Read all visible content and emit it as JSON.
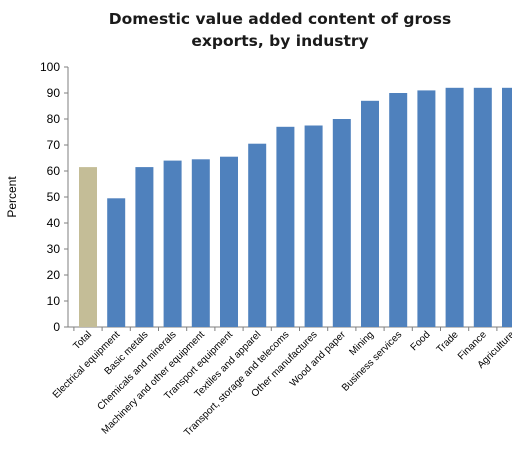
{
  "chart_data": {
    "type": "bar",
    "title_lines": [
      "Domestic value added content of gross",
      "exports, by industry"
    ],
    "ylabel": "Percent",
    "ylim": [
      0,
      100
    ],
    "yticks": [
      0,
      10,
      20,
      30,
      40,
      50,
      60,
      70,
      80,
      90,
      100
    ],
    "categories": [
      "Total",
      "Electrical equipment",
      "Basic metals",
      "Chemicals and minerals",
      "Machinery and other equipment",
      "Transport equipment",
      "Textiles and apparel",
      "Transport, storage and telecoms",
      "Other manufactures",
      "Wood and paper",
      "Mining",
      "Business services",
      "Food",
      "Trade",
      "Finance",
      "Agriculture"
    ],
    "values": [
      61.5,
      49.5,
      61.5,
      64,
      64.5,
      65.5,
      70.5,
      77,
      77.5,
      80,
      87,
      90,
      91,
      92,
      92,
      92
    ],
    "bar_colors": [
      "#c4bd97",
      "#4f81bd",
      "#4f81bd",
      "#4f81bd",
      "#4f81bd",
      "#4f81bd",
      "#4f81bd",
      "#4f81bd",
      "#4f81bd",
      "#4f81bd",
      "#4f81bd",
      "#4f81bd",
      "#4f81bd",
      "#4f81bd",
      "#4f81bd",
      "#4f81bd"
    ],
    "grid": false,
    "legend": "none"
  }
}
